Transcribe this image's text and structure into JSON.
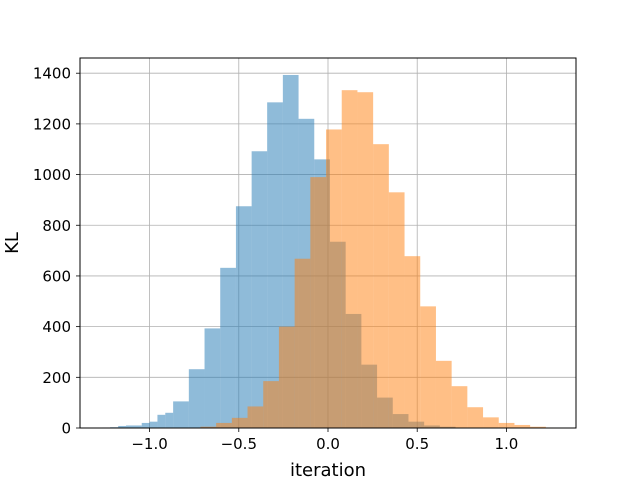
{
  "chart_data": {
    "type": "histogram",
    "title": "",
    "xlabel": "iteration",
    "ylabel": "KL",
    "xlim": [
      -1.39,
      1.39
    ],
    "ylim": [
      0,
      1460
    ],
    "grid": true,
    "legend": "none",
    "xticks": [
      -1.0,
      -0.5,
      0.0,
      0.5,
      1.0
    ],
    "xtick_labels": [
      "−1.0",
      "−0.5",
      "0.0",
      "0.5",
      "1.0"
    ],
    "yticks": [
      0,
      200,
      400,
      600,
      800,
      1000,
      1200,
      1400
    ],
    "ytick_labels": [
      "0",
      "200",
      "400",
      "600",
      "800",
      "1000",
      "1200",
      "1400"
    ],
    "series": [
      {
        "color": "#1f77b4",
        "alpha": 0.5,
        "bins": [
          {
            "x0": -1.265,
            "x1": -1.221,
            "count": 2
          },
          {
            "x0": -1.221,
            "x1": -1.176,
            "count": 3
          },
          {
            "x0": -1.176,
            "x1": -1.132,
            "count": 8
          },
          {
            "x0": -1.132,
            "x1": -1.044,
            "count": 10
          },
          {
            "x0": -1.044,
            "x1": -1.0,
            "count": 20
          },
          {
            "x0": -1.0,
            "x1": -0.956,
            "count": 25
          },
          {
            "x0": -0.956,
            "x1": -0.912,
            "count": 52
          },
          {
            "x0": -0.912,
            "x1": -0.868,
            "count": 60
          },
          {
            "x0": -0.868,
            "x1": -0.78,
            "count": 105
          },
          {
            "x0": -0.78,
            "x1": -0.692,
            "count": 232
          },
          {
            "x0": -0.692,
            "x1": -0.604,
            "count": 393
          },
          {
            "x0": -0.604,
            "x1": -0.516,
            "count": 632
          },
          {
            "x0": -0.516,
            "x1": -0.428,
            "count": 875
          },
          {
            "x0": -0.428,
            "x1": -0.341,
            "count": 1092
          },
          {
            "x0": -0.341,
            "x1": -0.253,
            "count": 1285
          },
          {
            "x0": -0.253,
            "x1": -0.165,
            "count": 1393
          },
          {
            "x0": -0.165,
            "x1": -0.077,
            "count": 1220
          },
          {
            "x0": -0.077,
            "x1": 0.011,
            "count": 1060
          },
          {
            "x0": 0.011,
            "x1": 0.099,
            "count": 735
          },
          {
            "x0": 0.099,
            "x1": 0.187,
            "count": 450
          },
          {
            "x0": 0.187,
            "x1": 0.275,
            "count": 250
          },
          {
            "x0": 0.275,
            "x1": 0.363,
            "count": 120
          },
          {
            "x0": 0.363,
            "x1": 0.451,
            "count": 55
          },
          {
            "x0": 0.451,
            "x1": 0.539,
            "count": 25
          },
          {
            "x0": 0.539,
            "x1": 0.627,
            "count": 10
          },
          {
            "x0": 0.627,
            "x1": 0.715,
            "count": 5
          }
        ]
      },
      {
        "color": "#ff7f0e",
        "alpha": 0.5,
        "bins": [
          {
            "x0": -0.715,
            "x1": -0.627,
            "count": 5
          },
          {
            "x0": -0.627,
            "x1": -0.539,
            "count": 20
          },
          {
            "x0": -0.539,
            "x1": -0.451,
            "count": 40
          },
          {
            "x0": -0.451,
            "x1": -0.363,
            "count": 85
          },
          {
            "x0": -0.363,
            "x1": -0.275,
            "count": 185
          },
          {
            "x0": -0.275,
            "x1": -0.187,
            "count": 400
          },
          {
            "x0": -0.187,
            "x1": -0.099,
            "count": 668
          },
          {
            "x0": -0.099,
            "x1": -0.011,
            "count": 990
          },
          {
            "x0": -0.011,
            "x1": 0.077,
            "count": 1178
          },
          {
            "x0": 0.077,
            "x1": 0.165,
            "count": 1333
          },
          {
            "x0": 0.165,
            "x1": 0.253,
            "count": 1325
          },
          {
            "x0": 0.253,
            "x1": 0.341,
            "count": 1120
          },
          {
            "x0": 0.341,
            "x1": 0.429,
            "count": 930
          },
          {
            "x0": 0.429,
            "x1": 0.517,
            "count": 678
          },
          {
            "x0": 0.517,
            "x1": 0.605,
            "count": 480
          },
          {
            "x0": 0.605,
            "x1": 0.693,
            "count": 265
          },
          {
            "x0": 0.693,
            "x1": 0.781,
            "count": 165
          },
          {
            "x0": 0.781,
            "x1": 0.869,
            "count": 82
          },
          {
            "x0": 0.869,
            "x1": 0.957,
            "count": 42
          },
          {
            "x0": 0.957,
            "x1": 1.045,
            "count": 20
          },
          {
            "x0": 1.045,
            "x1": 1.133,
            "count": 12
          },
          {
            "x0": 1.133,
            "x1": 1.221,
            "count": 5
          },
          {
            "x0": 1.221,
            "x1": 1.265,
            "count": 2
          }
        ]
      }
    ]
  }
}
